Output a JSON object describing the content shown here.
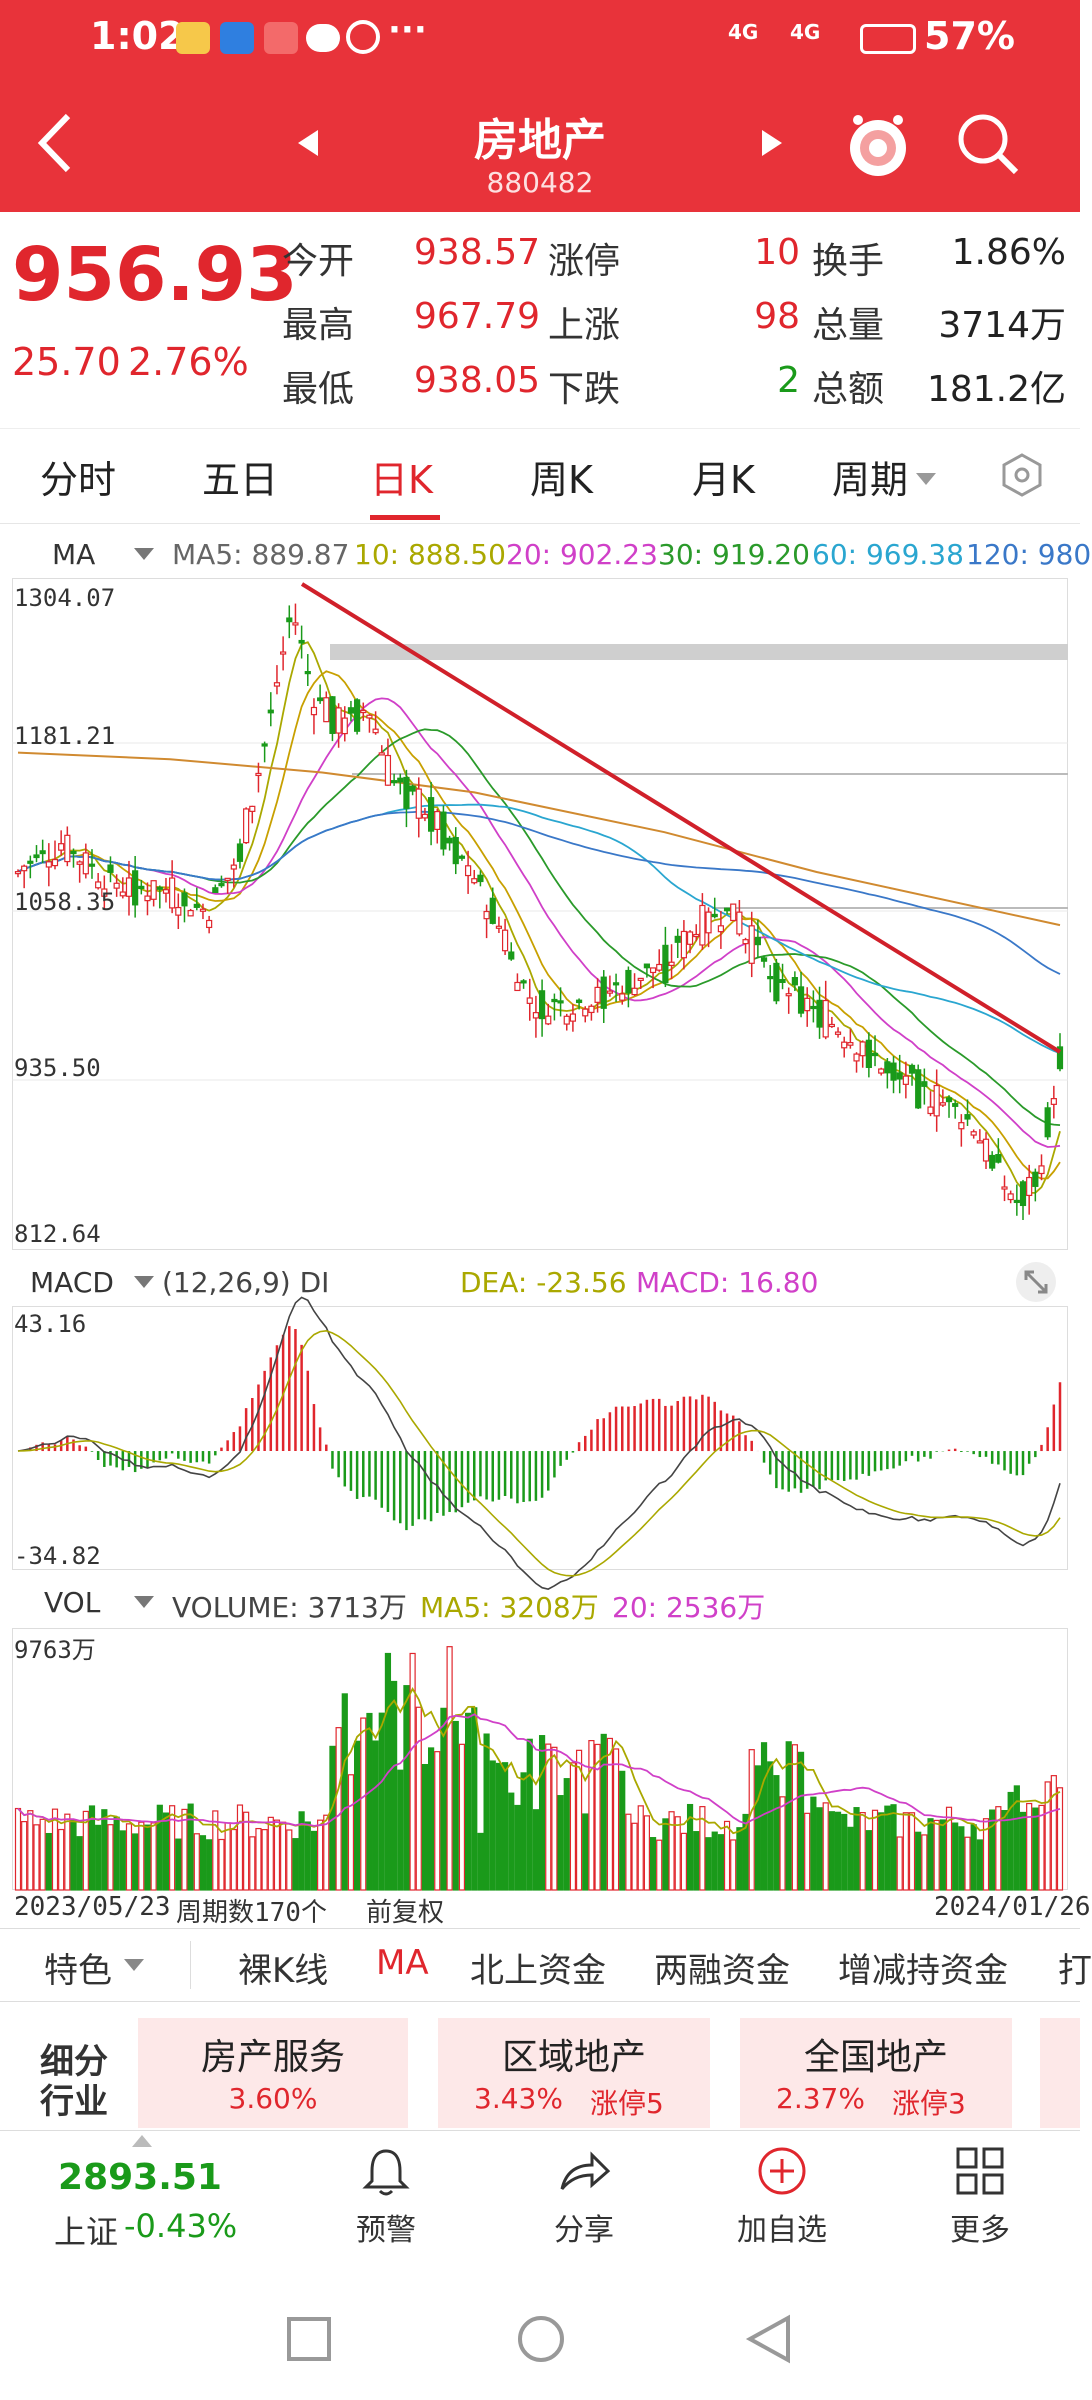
{
  "status_bar": {
    "time": "1:02",
    "network1": "4G",
    "network2": "4G",
    "battery": "57%",
    "more": "···"
  },
  "header": {
    "title": "房地产",
    "code": "880482"
  },
  "quote": {
    "price": "956.93",
    "change": "25.70",
    "change_pct": "2.76%",
    "open_label": "今开",
    "open": "938.57",
    "high_label": "最高",
    "high": "967.79",
    "low_label": "最低",
    "low": "938.05",
    "limit_up_label": "涨停",
    "limit_up": "10",
    "rise_label": "上涨",
    "rise": "98",
    "fall_label": "下跌",
    "fall": "2",
    "turnover_label": "换手",
    "turnover": "1.86%",
    "volume_label": "总量",
    "volume": "3714万",
    "amount_label": "总额",
    "amount": "181.2亿"
  },
  "tabs": [
    "分时",
    "五日",
    "日K",
    "周K",
    "月K",
    "周期"
  ],
  "ma_legend": {
    "name": "MA",
    "ma5": "MA5: 889.87",
    "ma10": "10: 888.50",
    "ma20": "20: 902.23",
    "ma30": "30: 919.20",
    "ma60": "60: 969.38",
    "ma120": "120: 980"
  },
  "price_axis": [
    "1304.07",
    "1181.21",
    "1058.35",
    "935.50",
    "812.64"
  ],
  "macd_legend": {
    "name": "MACD",
    "params": "(12,26,9) DI",
    "dea": "DEA: -23.56",
    "macd": "MACD: 16.80"
  },
  "macd_axis": [
    "43.16",
    "-34.82"
  ],
  "vol_legend": {
    "name": "VOL",
    "volume": "VOLUME: 3713万",
    "ma5": "MA5: 3208万",
    "ma20": "20: 2536万"
  },
  "vol_axis": [
    "9763万"
  ],
  "date_axis": {
    "start": "2023/05/23",
    "periods": "周期数170个",
    "adjust": "前复权",
    "end": "2024/01/26"
  },
  "feature_tabs": [
    "特色",
    "裸K线",
    "MA",
    "北上资金",
    "两融资金",
    "增减持资金",
    "打"
  ],
  "sub_industry": {
    "label1": "细分",
    "label2": "行业"
  },
  "cards": [
    {
      "name": "房产服务",
      "pct": "3.60%",
      "extra": ""
    },
    {
      "name": "区域地产",
      "pct": "3.43%",
      "extra": "涨停5"
    },
    {
      "name": "全国地产",
      "pct": "2.37%",
      "extra": "涨停3"
    }
  ],
  "bottom": {
    "index_value": "2893.51",
    "index_name": "上证",
    "index_change": "-0.43%",
    "alert": "预警",
    "share": "分享",
    "add": "加自选",
    "more": "更多"
  },
  "colors": {
    "up": "#e0262d",
    "down": "#1a9a1a",
    "header": "#e8333a",
    "ma5": "#aaa800",
    "ma10": "#c8a000",
    "ma20": "#d040c8",
    "ma30": "#2a9a2a",
    "ma60": "#2aa6d0",
    "ma120": "#3a78c8"
  },
  "chart_data": {
    "type": "candlestick",
    "price_range": [
      812.64,
      1304.07
    ],
    "macd_range": [
      -34.82,
      43.16
    ],
    "volume_max": "9763万",
    "periods": 170,
    "date_range": [
      "2023/05/23",
      "2024/01/26"
    ]
  }
}
